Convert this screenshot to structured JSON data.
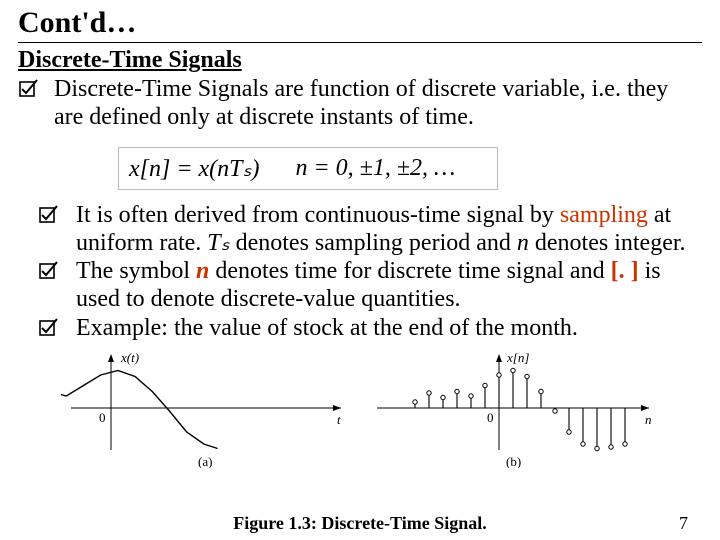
{
  "colors": {
    "text": "#000000",
    "accent": "#cc3300",
    "background": "#ffffff",
    "border_light": "#bbbbbb"
  },
  "title": "Cont'd…",
  "subtitle": "Discrete-Time Signals",
  "bullet_main": {
    "prefix": "Discrete-Time Signals",
    "rest": " are function of discrete variable, i.e. they are defined only at discrete instants of time."
  },
  "equation": {
    "lhs": "x[n] = x(nTₛ)",
    "rhs": "n = 0, ±1, ±2, …"
  },
  "inner_bullets": [
    {
      "pre": " It is often derived from continuous-time signal by ",
      "accent": "sampling",
      "post": " at uniform rate. ",
      "ital1": "Tₛ",
      "mid": " denotes sampling period and ",
      "ital2": "n",
      "post2": " denotes integer."
    },
    {
      "pre": "The symbol ",
      "accent": "n",
      "mid": " denotes time for discrete time signal and ",
      "accent2": "[. ]",
      "post": " is used to denote discrete-value quantities."
    },
    {
      "pre": " Example: the value of stock at the end of the month."
    }
  ],
  "figure": {
    "caption": "Figure 1.3: Discrete-Time Signal.",
    "panel_a": {
      "type": "line",
      "label_axis_y": "x(t)",
      "label_axis_x": "t",
      "sub_label": "(a)",
      "xlim": [
        -3.2,
        3.2
      ],
      "ylim": [
        -1.6,
        1.6
      ],
      "curve": [
        [
          -3.1,
          0.2
        ],
        [
          -2.6,
          0.5
        ],
        [
          -2.2,
          0.35
        ],
        [
          -1.8,
          0.55
        ],
        [
          -1.3,
          0.4
        ],
        [
          -0.8,
          0.75
        ],
        [
          -0.3,
          1.1
        ],
        [
          0.2,
          1.25
        ],
        [
          0.7,
          1.05
        ],
        [
          1.2,
          0.55
        ],
        [
          1.7,
          -0.1
        ],
        [
          2.2,
          -0.8
        ],
        [
          2.7,
          -1.2
        ],
        [
          3.1,
          -1.35
        ]
      ],
      "stroke": "#000000",
      "stroke_width": 1.4,
      "axis_color": "#000000"
    },
    "panel_b": {
      "type": "stem",
      "label_axis_y": "x[n]",
      "label_axis_x": "n",
      "sub_label": "(b)",
      "xlim": [
        -6,
        10
      ],
      "ylim": [
        -1.6,
        1.6
      ],
      "stems": [
        [
          -6,
          0.2
        ],
        [
          -5,
          0.5
        ],
        [
          -4,
          0.35
        ],
        [
          -3,
          0.55
        ],
        [
          -2,
          0.4
        ],
        [
          -1,
          0.75
        ],
        [
          0,
          1.1
        ],
        [
          1,
          1.25
        ],
        [
          2,
          1.05
        ],
        [
          3,
          0.55
        ],
        [
          4,
          -0.1
        ],
        [
          5,
          -0.8
        ],
        [
          6,
          -1.2
        ],
        [
          7,
          -1.35
        ],
        [
          8,
          -1.3
        ],
        [
          9,
          -1.2
        ]
      ],
      "marker_radius": 2.2,
      "stroke": "#000000",
      "stroke_width": 1.1,
      "axis_color": "#000000"
    }
  },
  "page_number": "7"
}
